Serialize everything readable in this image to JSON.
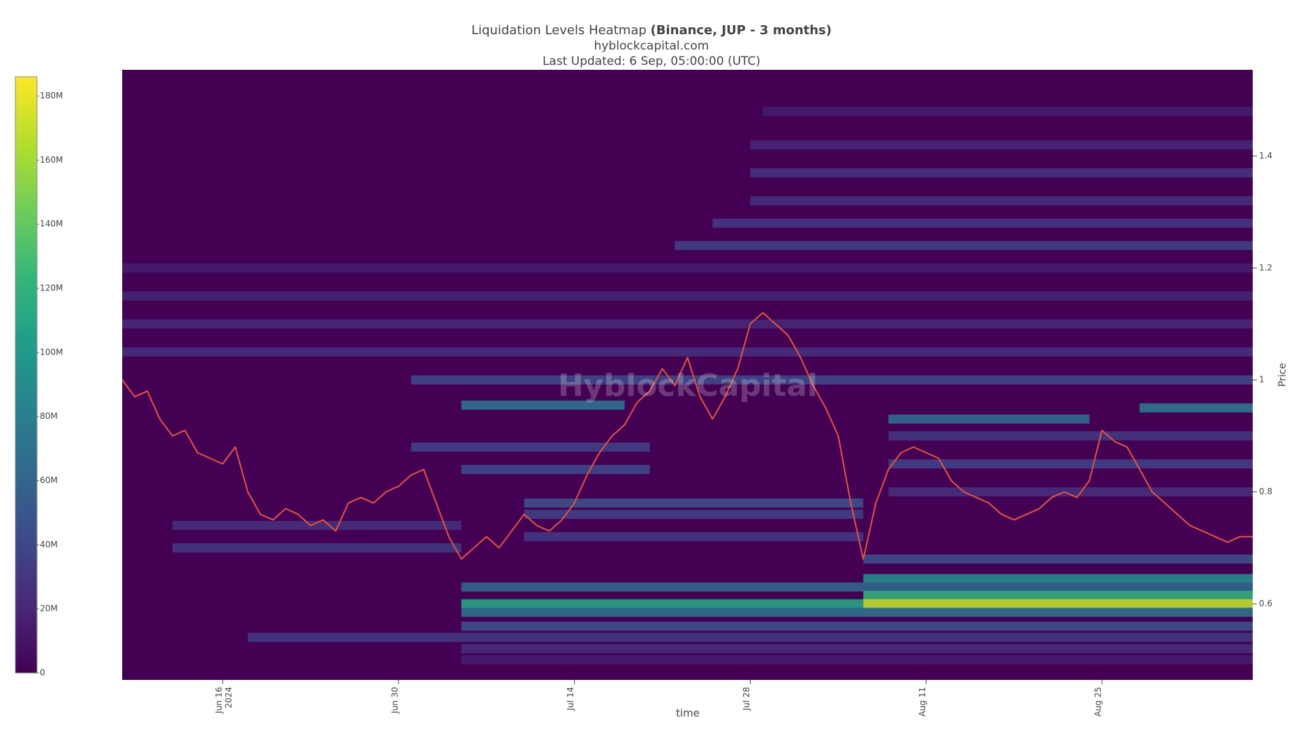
{
  "chart_data": {
    "type": "heatmap",
    "title": "Liquidation Levels Heatmap",
    "title_bold": "(Binance, JUP - 3 months)",
    "subtitle": "hyblockcapital.com",
    "updated": "Last Updated: 6 Sep, 05:00:00 (UTC)",
    "watermark": "HyblockCapital",
    "xlabel": "time",
    "ylabel": "Price",
    "background": "#440154",
    "colorscale": [
      "#440154",
      "#482878",
      "#3e4989",
      "#31688e",
      "#26828e",
      "#1f9e89",
      "#35b779",
      "#6ece58",
      "#b5de2b",
      "#fde725"
    ],
    "zlim": [
      0,
      186000000
    ],
    "zticks": [
      {
        "value": 0,
        "label": "0"
      },
      {
        "value": 20000000,
        "label": "20M"
      },
      {
        "value": 40000000,
        "label": "40M"
      },
      {
        "value": 60000000,
        "label": "60M"
      },
      {
        "value": 80000000,
        "label": "80M"
      },
      {
        "value": 100000000,
        "label": "100M"
      },
      {
        "value": 120000000,
        "label": "120M"
      },
      {
        "value": 140000000,
        "label": "140M"
      },
      {
        "value": 160000000,
        "label": "160M"
      },
      {
        "value": 180000000,
        "label": "180M"
      }
    ],
    "xlim": [
      "2024-06-08",
      "2024-09-06"
    ],
    "xticks": [
      {
        "value": "2024-06-16",
        "label": "Jun 16",
        "year": "2024"
      },
      {
        "value": "2024-06-30",
        "label": "Jun 30"
      },
      {
        "value": "2024-07-14",
        "label": "Jul 14"
      },
      {
        "value": "2024-07-28",
        "label": "Jul 28"
      },
      {
        "value": "2024-08-11",
        "label": "Aug 11"
      },
      {
        "value": "2024-08-25",
        "label": "Aug 25"
      }
    ],
    "ylim": [
      0.464,
      1.554
    ],
    "yticks": [
      0.6,
      0.8,
      1,
      1.2,
      1.4
    ],
    "bands": [
      {
        "price": 1.48,
        "start": "2024-07-29",
        "end": "2024-09-06",
        "value": 15000000
      },
      {
        "price": 1.42,
        "start": "2024-07-28",
        "end": "2024-09-06",
        "value": 20000000
      },
      {
        "price": 1.37,
        "start": "2024-07-28",
        "end": "2024-09-06",
        "value": 28000000
      },
      {
        "price": 1.32,
        "start": "2024-07-28",
        "end": "2024-09-06",
        "value": 25000000
      },
      {
        "price": 1.28,
        "start": "2024-07-25",
        "end": "2024-09-06",
        "value": 30000000
      },
      {
        "price": 1.24,
        "start": "2024-07-22",
        "end": "2024-09-06",
        "value": 35000000
      },
      {
        "price": 1.2,
        "start": "2024-06-08",
        "end": "2024-09-06",
        "value": 15000000
      },
      {
        "price": 1.15,
        "start": "2024-06-08",
        "end": "2024-09-06",
        "value": 18000000
      },
      {
        "price": 1.1,
        "start": "2024-06-08",
        "end": "2024-09-06",
        "value": 20000000
      },
      {
        "price": 1.05,
        "start": "2024-06-08",
        "end": "2024-09-06",
        "value": 25000000
      },
      {
        "price": 1.0,
        "start": "2024-07-01",
        "end": "2024-09-06",
        "value": 40000000
      },
      {
        "price": 0.955,
        "start": "2024-07-05",
        "end": "2024-07-18",
        "value": 70000000
      },
      {
        "price": 0.95,
        "start": "2024-08-28",
        "end": "2024-09-06",
        "value": 75000000
      },
      {
        "price": 0.93,
        "start": "2024-08-08",
        "end": "2024-08-24",
        "value": 65000000
      },
      {
        "price": 0.9,
        "start": "2024-08-08",
        "end": "2024-09-06",
        "value": 30000000
      },
      {
        "price": 0.88,
        "start": "2024-07-01",
        "end": "2024-07-20",
        "value": 35000000
      },
      {
        "price": 0.85,
        "start": "2024-08-08",
        "end": "2024-09-06",
        "value": 35000000
      },
      {
        "price": 0.84,
        "start": "2024-07-05",
        "end": "2024-07-20",
        "value": 40000000
      },
      {
        "price": 0.8,
        "start": "2024-08-08",
        "end": "2024-09-06",
        "value": 25000000
      },
      {
        "price": 0.78,
        "start": "2024-07-10",
        "end": "2024-08-06",
        "value": 45000000
      },
      {
        "price": 0.76,
        "start": "2024-07-10",
        "end": "2024-08-06",
        "value": 35000000
      },
      {
        "price": 0.74,
        "start": "2024-06-12",
        "end": "2024-07-05",
        "value": 25000000
      },
      {
        "price": 0.72,
        "start": "2024-07-10",
        "end": "2024-08-06",
        "value": 30000000
      },
      {
        "price": 0.7,
        "start": "2024-06-12",
        "end": "2024-07-05",
        "value": 30000000
      },
      {
        "price": 0.68,
        "start": "2024-08-06",
        "end": "2024-09-06",
        "value": 45000000
      },
      {
        "price": 0.645,
        "start": "2024-08-06",
        "end": "2024-09-06",
        "value": 90000000
      },
      {
        "price": 0.63,
        "start": "2024-07-05",
        "end": "2024-09-06",
        "value": 60000000
      },
      {
        "price": 0.615,
        "start": "2024-08-06",
        "end": "2024-09-06",
        "value": 120000000
      },
      {
        "price": 0.6,
        "start": "2024-07-05",
        "end": "2024-08-06",
        "value": 110000000
      },
      {
        "price": 0.6,
        "start": "2024-08-06",
        "end": "2024-09-06",
        "value": 170000000
      },
      {
        "price": 0.585,
        "start": "2024-07-05",
        "end": "2024-09-06",
        "value": 70000000
      },
      {
        "price": 0.56,
        "start": "2024-07-05",
        "end": "2024-09-06",
        "value": 45000000
      },
      {
        "price": 0.54,
        "start": "2024-06-18",
        "end": "2024-09-06",
        "value": 30000000
      },
      {
        "price": 0.52,
        "start": "2024-07-05",
        "end": "2024-09-06",
        "value": 25000000
      },
      {
        "price": 0.5,
        "start": "2024-07-05",
        "end": "2024-09-06",
        "value": 15000000
      }
    ],
    "price": {
      "color": "#e5533d",
      "x": [
        "2024-06-08",
        "2024-06-09",
        "2024-06-10",
        "2024-06-11",
        "2024-06-12",
        "2024-06-13",
        "2024-06-14",
        "2024-06-15",
        "2024-06-16",
        "2024-06-17",
        "2024-06-18",
        "2024-06-19",
        "2024-06-20",
        "2024-06-21",
        "2024-06-22",
        "2024-06-23",
        "2024-06-24",
        "2024-06-25",
        "2024-06-26",
        "2024-06-27",
        "2024-06-28",
        "2024-06-29",
        "2024-06-30",
        "2024-07-01",
        "2024-07-02",
        "2024-07-03",
        "2024-07-04",
        "2024-07-05",
        "2024-07-06",
        "2024-07-07",
        "2024-07-08",
        "2024-07-09",
        "2024-07-10",
        "2024-07-11",
        "2024-07-12",
        "2024-07-13",
        "2024-07-14",
        "2024-07-15",
        "2024-07-16",
        "2024-07-17",
        "2024-07-18",
        "2024-07-19",
        "2024-07-20",
        "2024-07-21",
        "2024-07-22",
        "2024-07-23",
        "2024-07-24",
        "2024-07-25",
        "2024-07-26",
        "2024-07-27",
        "2024-07-28",
        "2024-07-29",
        "2024-07-30",
        "2024-07-31",
        "2024-08-01",
        "2024-08-02",
        "2024-08-03",
        "2024-08-04",
        "2024-08-05",
        "2024-08-06",
        "2024-08-07",
        "2024-08-08",
        "2024-08-09",
        "2024-08-10",
        "2024-08-11",
        "2024-08-12",
        "2024-08-13",
        "2024-08-14",
        "2024-08-15",
        "2024-08-16",
        "2024-08-17",
        "2024-08-18",
        "2024-08-19",
        "2024-08-20",
        "2024-08-21",
        "2024-08-22",
        "2024-08-23",
        "2024-08-24",
        "2024-08-25",
        "2024-08-26",
        "2024-08-27",
        "2024-08-28",
        "2024-08-29",
        "2024-08-30",
        "2024-08-31",
        "2024-09-01",
        "2024-09-02",
        "2024-09-03",
        "2024-09-04",
        "2024-09-05",
        "2024-09-06"
      ],
      "values": [
        1.0,
        0.97,
        0.98,
        0.93,
        0.9,
        0.91,
        0.87,
        0.86,
        0.85,
        0.88,
        0.8,
        0.76,
        0.75,
        0.77,
        0.76,
        0.74,
        0.75,
        0.73,
        0.78,
        0.79,
        0.78,
        0.8,
        0.81,
        0.83,
        0.84,
        0.78,
        0.72,
        0.68,
        0.7,
        0.72,
        0.7,
        0.73,
        0.76,
        0.74,
        0.73,
        0.75,
        0.78,
        0.83,
        0.87,
        0.9,
        0.92,
        0.96,
        0.98,
        1.02,
        0.99,
        1.04,
        0.97,
        0.93,
        0.97,
        1.02,
        1.1,
        1.12,
        1.1,
        1.08,
        1.04,
        0.99,
        0.95,
        0.9,
        0.78,
        0.68,
        0.78,
        0.84,
        0.87,
        0.88,
        0.87,
        0.86,
        0.82,
        0.8,
        0.79,
        0.78,
        0.76,
        0.75,
        0.76,
        0.77,
        0.79,
        0.8,
        0.79,
        0.82,
        0.91,
        0.89,
        0.88,
        0.84,
        0.8,
        0.78,
        0.76,
        0.74,
        0.73,
        0.72,
        0.71,
        0.72,
        0.72
      ]
    }
  }
}
